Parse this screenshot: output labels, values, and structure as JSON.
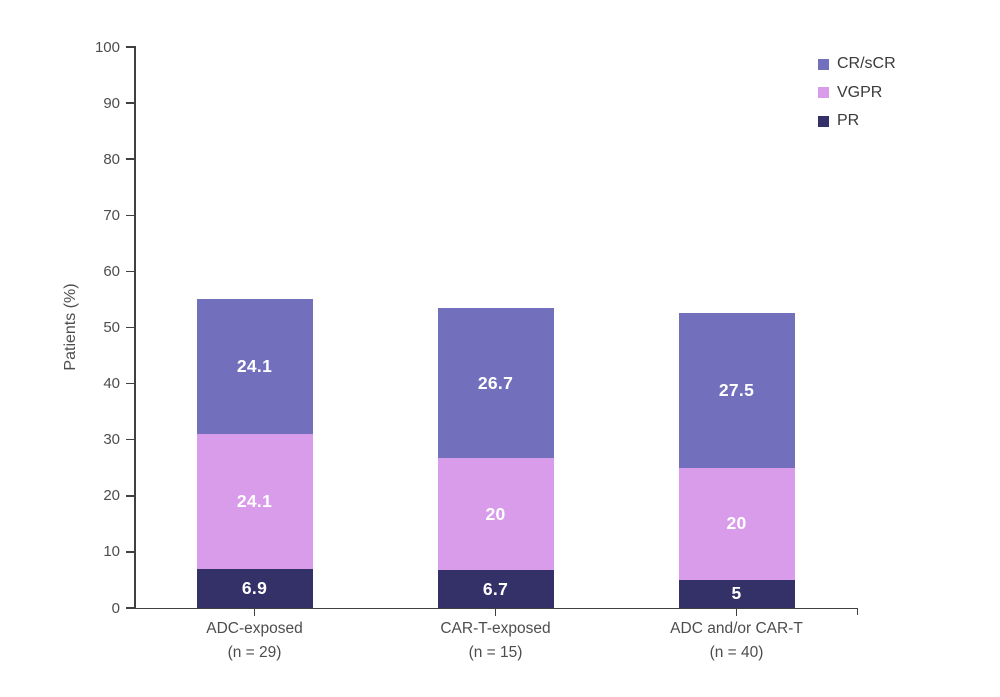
{
  "chart_data": {
    "type": "bar",
    "stacked": true,
    "title": "",
    "ylabel": "Patients (%)",
    "xlabel": "",
    "ylim": [
      0,
      100
    ],
    "yticks": [
      0,
      10,
      20,
      30,
      40,
      50,
      60,
      70,
      80,
      90,
      100
    ],
    "grid": false,
    "categories": [
      {
        "line1": "ADC-exposed",
        "line2": "(n = 29)"
      },
      {
        "line1": "CAR-T-exposed",
        "line2": "(n = 15)"
      },
      {
        "line1": "ADC and/or CAR-T",
        "line2": "(n = 40)"
      }
    ],
    "series": [
      {
        "name": "PR",
        "color": "#343068",
        "values": [
          6.9,
          6.7,
          5
        ],
        "labels": [
          "6.9",
          "6.7",
          "5"
        ]
      },
      {
        "name": "VGPR",
        "color": "#d99ceb",
        "values": [
          24.1,
          20,
          20
        ],
        "labels": [
          "24.1",
          "20",
          "20"
        ]
      },
      {
        "name": "CR/sCR",
        "color": "#7270bd",
        "values": [
          24.1,
          26.7,
          27.5
        ],
        "labels": [
          "24.1",
          "26.7",
          "27.5"
        ]
      }
    ],
    "legend": {
      "position": "top-right",
      "items": [
        {
          "label": "CR/sCR",
          "color": "#7270bd"
        },
        {
          "label": "VGPR",
          "color": "#d99ceb"
        },
        {
          "label": "PR",
          "color": "#343068"
        }
      ]
    },
    "colors": {
      "axis": "#404040",
      "tick_label": "#4d4d4d",
      "value_label": "#ffffff",
      "background": "#ffffff"
    }
  }
}
